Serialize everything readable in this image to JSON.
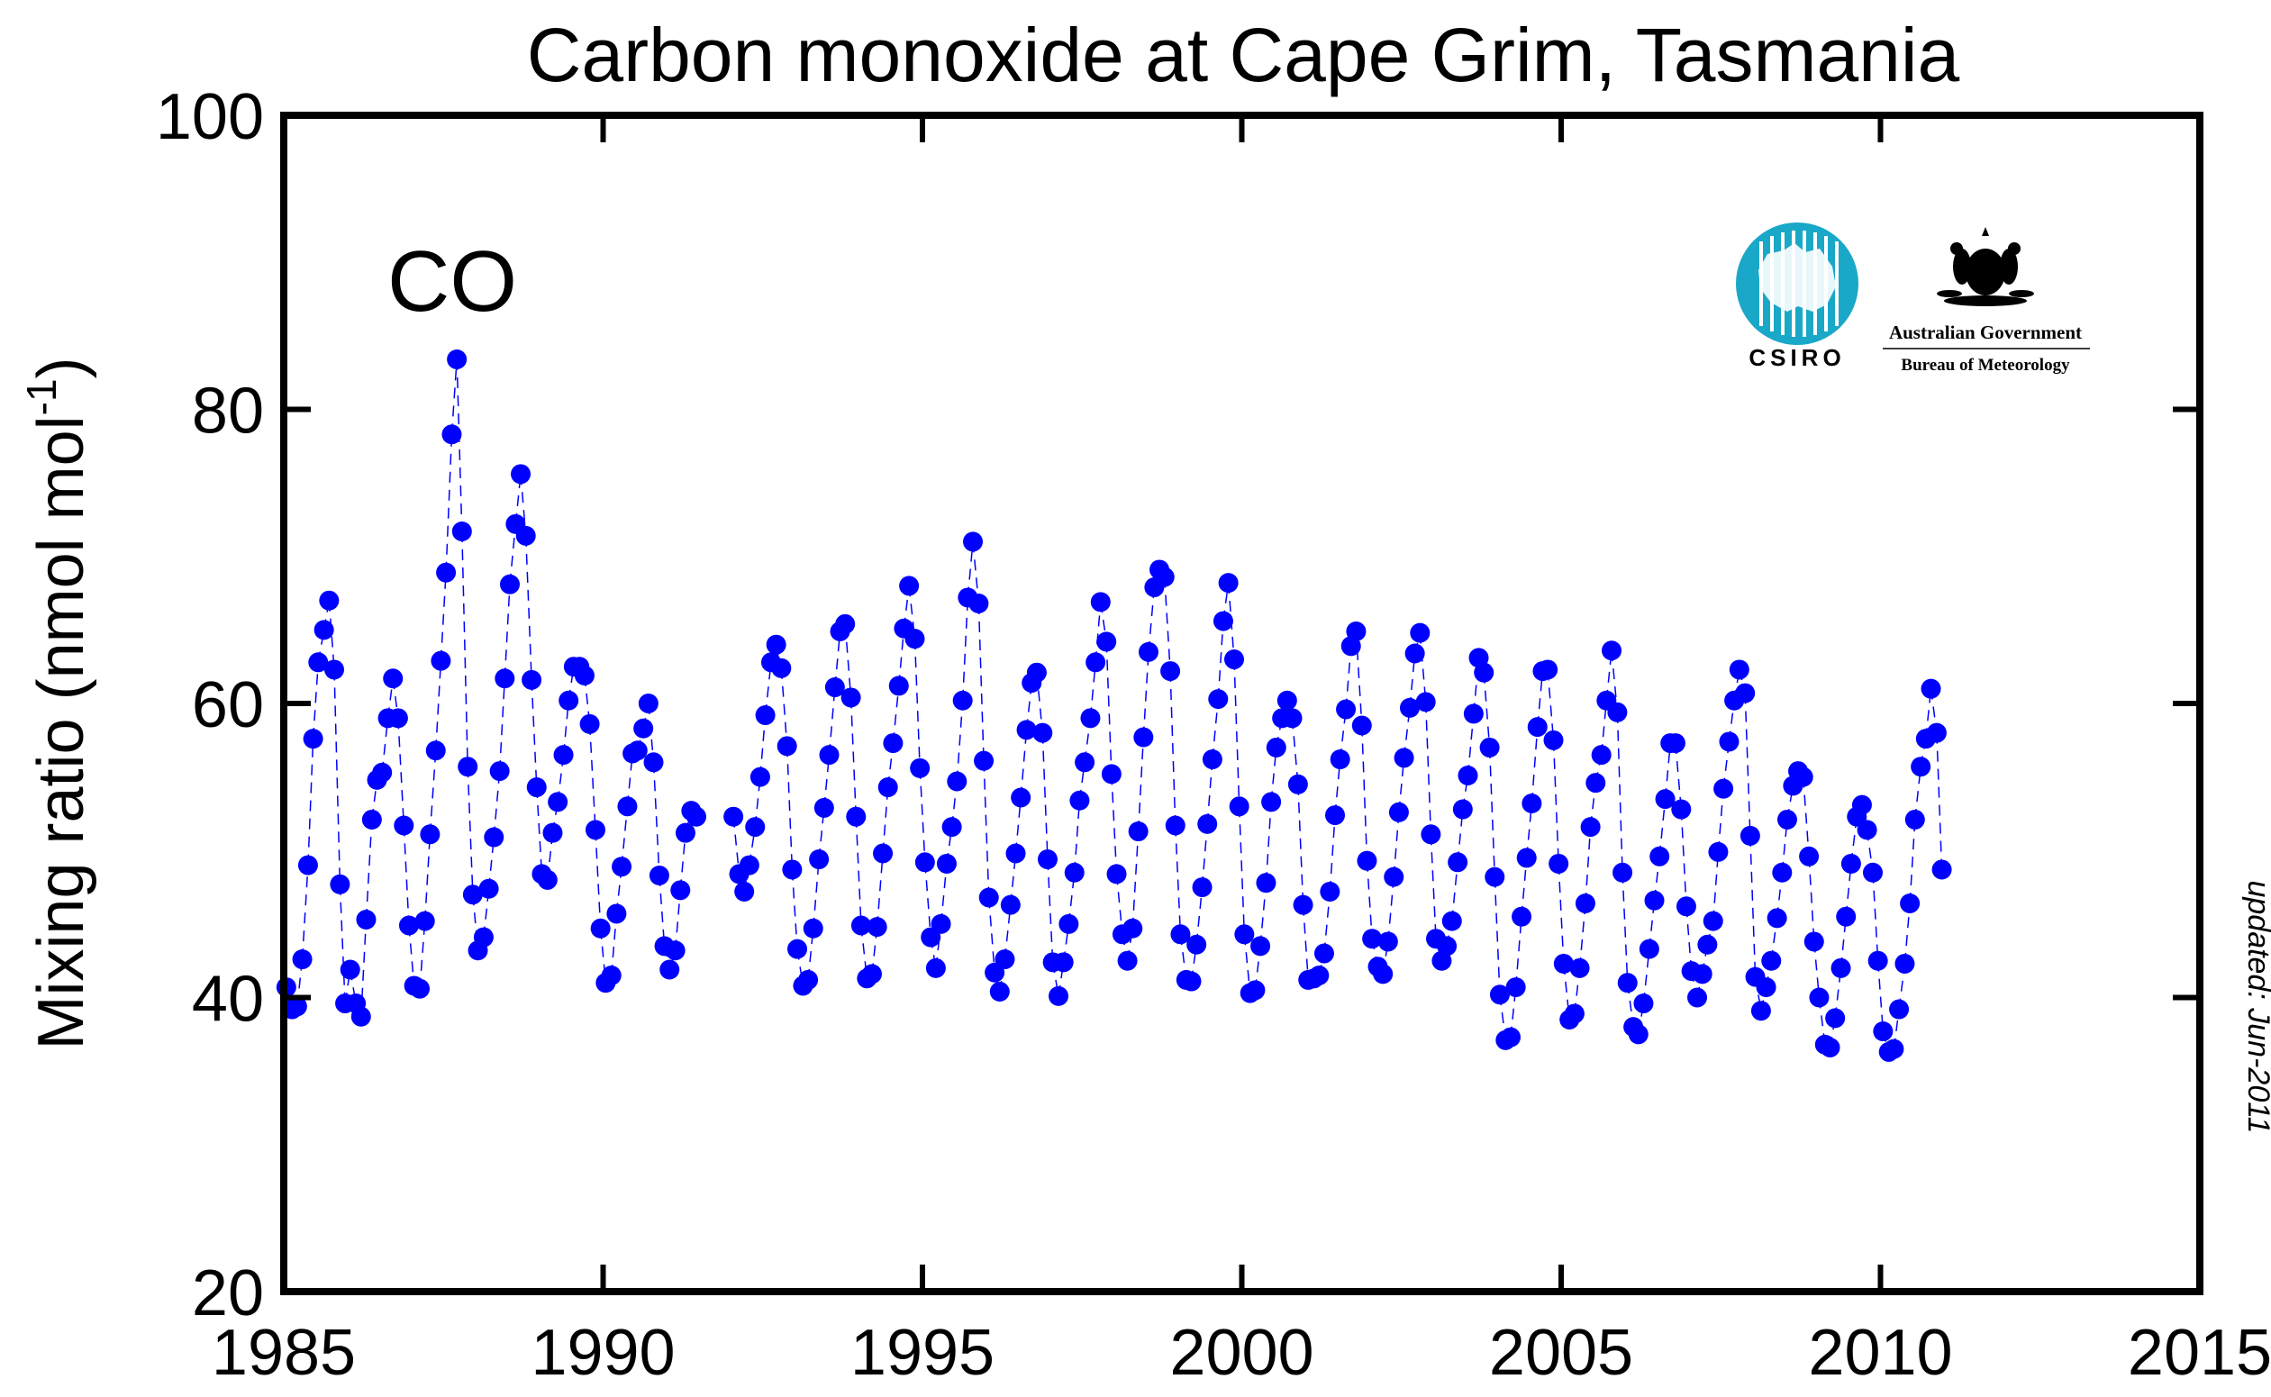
{
  "chart_data": {
    "type": "scatter",
    "title": "Carbon monoxide at Cape Grim, Tasmania",
    "xlabel": "",
    "ylabel": "Mixing ratio (nmol mol",
    "ylabel_sup": "-1",
    "ylabel_close": ")",
    "xlim": [
      1985,
      2015
    ],
    "ylim": [
      20,
      100
    ],
    "xticks": [
      1985,
      1990,
      1995,
      2000,
      2005,
      2010,
      2015
    ],
    "yticks": [
      20,
      40,
      60,
      80,
      100
    ],
    "annotation": "CO",
    "updated_note": "updated: Jun-2011",
    "series": [
      {
        "marker_color": "#0000ff",
        "line_color": "#0000ff",
        "line_style": "dashed",
        "x": [
          1985.04,
          1985.13,
          1985.21,
          1985.29,
          1985.38,
          1985.46,
          1985.54,
          1985.63,
          1985.71,
          1985.79,
          1985.88,
          1985.96,
          1986.04,
          1986.13,
          1986.21,
          1986.29,
          1986.38,
          1986.46,
          1986.54,
          1986.63,
          1986.71,
          1986.79,
          1986.88,
          1986.96,
          1987.04,
          1987.13,
          1987.21,
          1987.29,
          1987.38,
          1987.46,
          1987.54,
          1987.63,
          1987.71,
          1987.79,
          1987.88,
          1987.96,
          1988.04,
          1988.13,
          1988.21,
          1988.29,
          1988.38,
          1988.46,
          1988.54,
          1988.63,
          1988.71,
          1988.79,
          1988.88,
          1988.96,
          1989.04,
          1989.13,
          1989.21,
          1989.29,
          1989.38,
          1989.46,
          1989.54,
          1989.63,
          1989.71,
          1989.79,
          1989.88,
          1989.96,
          1990.04,
          1990.13,
          1990.21,
          1990.29,
          1990.38,
          1990.46,
          1990.54,
          1990.63,
          1990.71,
          1990.79,
          1990.88,
          1990.96,
          1991.04,
          1991.13,
          1991.21,
          1991.29,
          1991.38,
          1991.46,
          1992.04,
          1992.13,
          1992.21,
          1992.29,
          1992.38,
          1992.46,
          1992.54,
          1992.63,
          1992.71,
          1992.79,
          1992.88,
          1992.96,
          1993.04,
          1993.13,
          1993.21,
          1993.29,
          1993.38,
          1993.46,
          1993.54,
          1993.63,
          1993.71,
          1993.79,
          1993.88,
          1993.96,
          1994.04,
          1994.13,
          1994.21,
          1994.29,
          1994.38,
          1994.46,
          1994.54,
          1994.63,
          1994.71,
          1994.79,
          1994.88,
          1994.96,
          1995.04,
          1995.13,
          1995.21,
          1995.29,
          1995.38,
          1995.46,
          1995.54,
          1995.63,
          1995.71,
          1995.79,
          1995.88,
          1995.96,
          1996.04,
          1996.13,
          1996.21,
          1996.29,
          1996.38,
          1996.46,
          1996.54,
          1996.63,
          1996.71,
          1996.79,
          1996.88,
          1996.96,
          1997.04,
          1997.13,
          1997.21,
          1997.29,
          1997.38,
          1997.46,
          1997.54,
          1997.63,
          1997.71,
          1997.79,
          1997.88,
          1997.96,
          1998.04,
          1998.13,
          1998.21,
          1998.29,
          1998.38,
          1998.46,
          1998.54,
          1998.63,
          1998.71,
          1998.79,
          1998.88,
          1998.96,
          1999.04,
          1999.13,
          1999.21,
          1999.29,
          1999.38,
          1999.46,
          1999.54,
          1999.63,
          1999.71,
          1999.79,
          1999.88,
          1999.96,
          2000.04,
          2000.13,
          2000.21,
          2000.29,
          2000.38,
          2000.46,
          2000.54,
          2000.63,
          2000.71,
          2000.79,
          2000.88,
          2000.96,
          2001.04,
          2001.13,
          2001.21,
          2001.29,
          2001.38,
          2001.46,
          2001.54,
          2001.63,
          2001.71,
          2001.79,
          2001.88,
          2001.96,
          2002.04,
          2002.13,
          2002.21,
          2002.29,
          2002.38,
          2002.46,
          2002.54,
          2002.63,
          2002.71,
          2002.79,
          2002.88,
          2002.96,
          2003.04,
          2003.13,
          2003.21,
          2003.29,
          2003.38,
          2003.46,
          2003.54,
          2003.63,
          2003.71,
          2003.79,
          2003.88,
          2003.96,
          2004.04,
          2004.13,
          2004.21,
          2004.29,
          2004.38,
          2004.46,
          2004.54,
          2004.63,
          2004.71,
          2004.79,
          2004.88,
          2004.96,
          2005.04,
          2005.13,
          2005.21,
          2005.29,
          2005.38,
          2005.46,
          2005.54,
          2005.63,
          2005.71,
          2005.79,
          2005.88,
          2005.96,
          2006.04,
          2006.13,
          2006.21,
          2006.29,
          2006.38,
          2006.46,
          2006.54,
          2006.63,
          2006.71,
          2006.79,
          2006.88,
          2006.96,
          2007.04,
          2007.13,
          2007.21,
          2007.29,
          2007.38,
          2007.46,
          2007.54,
          2007.63,
          2007.71,
          2007.79,
          2007.88,
          2007.96,
          2008.04,
          2008.13,
          2008.21,
          2008.29,
          2008.38,
          2008.46,
          2008.54,
          2008.63,
          2008.71,
          2008.79,
          2008.88,
          2008.96,
          2009.04,
          2009.13,
          2009.21,
          2009.29,
          2009.38,
          2009.46,
          2009.54,
          2009.63,
          2009.71,
          2009.79,
          2009.88,
          2009.96,
          2010.04,
          2010.13,
          2010.21,
          2010.29,
          2010.38,
          2010.46,
          2010.54,
          2010.63,
          2010.71,
          2010.79,
          2010.88,
          2010.96
        ],
        "y": [
          40.7,
          39.2,
          39.4,
          42.6,
          49.0,
          57.6,
          62.8,
          65.0,
          67.0,
          62.3,
          47.7,
          39.6,
          41.9,
          39.6,
          38.7,
          45.3,
          52.1,
          54.8,
          55.3,
          59.0,
          61.7,
          59.0,
          51.7,
          44.9,
          40.8,
          40.6,
          45.2,
          51.1,
          56.8,
          62.9,
          68.9,
          78.3,
          83.4,
          71.7,
          55.7,
          47.0,
          43.2,
          44.1,
          47.4,
          50.9,
          55.4,
          61.7,
          68.1,
          72.2,
          75.6,
          71.4,
          61.6,
          54.3,
          48.4,
          48.0,
          51.2,
          53.3,
          56.5,
          60.2,
          62.5,
          62.5,
          61.9,
          58.6,
          51.4,
          44.7,
          41.0,
          41.5,
          45.7,
          48.9,
          53.0,
          56.6,
          56.8,
          58.3,
          60.0,
          56.0,
          48.3,
          43.5,
          41.9,
          43.2,
          47.3,
          51.2,
          52.7,
          52.3,
          52.3,
          48.4,
          47.2,
          49.0,
          51.6,
          55.0,
          59.2,
          62.8,
          64.0,
          62.4,
          57.1,
          48.7,
          43.3,
          40.8,
          41.2,
          44.7,
          49.4,
          52.9,
          56.5,
          61.1,
          64.9,
          65.4,
          60.4,
          52.3,
          44.9,
          41.3,
          41.6,
          44.8,
          49.8,
          54.3,
          57.3,
          61.2,
          65.1,
          68.0,
          64.4,
          55.6,
          49.2,
          44.1,
          42.0,
          45.0,
          49.1,
          51.6,
          54.7,
          60.2,
          67.2,
          71.0,
          66.8,
          56.1,
          46.8,
          41.7,
          40.4,
          42.6,
          46.3,
          49.8,
          53.6,
          58.2,
          61.4,
          62.1,
          58.0,
          49.4,
          42.4,
          40.1,
          42.4,
          45.0,
          48.5,
          53.4,
          56.0,
          59.0,
          62.8,
          66.9,
          64.2,
          55.2,
          48.4,
          44.3,
          42.5,
          44.7,
          51.3,
          57.7,
          63.5,
          67.9,
          69.1,
          68.6,
          62.2,
          51.7,
          44.3,
          41.2,
          41.1,
          43.6,
          47.5,
          51.8,
          56.2,
          60.3,
          65.6,
          68.2,
          63.0,
          53.0,
          44.3,
          40.3,
          40.5,
          43.5,
          47.8,
          53.3,
          57.0,
          59.0,
          60.2,
          59.0,
          54.5,
          46.3,
          41.2,
          41.3,
          41.5,
          43.0,
          47.2,
          52.4,
          56.2,
          59.6,
          63.9,
          64.9,
          58.5,
          49.3,
          44.0,
          42.1,
          41.6,
          43.8,
          48.2,
          52.6,
          56.3,
          59.7,
          63.4,
          64.8,
          60.1,
          51.1,
          44.0,
          42.5,
          43.5,
          45.2,
          49.2,
          52.8,
          55.1,
          59.3,
          63.1,
          62.1,
          57.0,
          48.2,
          40.2,
          37.1,
          37.3,
          40.7,
          45.5,
          49.5,
          53.2,
          58.4,
          62.2,
          62.3,
          57.5,
          49.1,
          42.3,
          38.5,
          38.9,
          42.0,
          46.4,
          51.6,
          54.6,
          56.5,
          60.2,
          63.6,
          59.4,
          48.5,
          41.0,
          38.0,
          37.5,
          39.6,
          43.3,
          46.6,
          49.6,
          53.5,
          57.3,
          57.3,
          52.8,
          46.2,
          41.8,
          40.0,
          41.6,
          43.6,
          45.2,
          49.9,
          54.2,
          57.4,
          60.2,
          62.3,
          60.7,
          51.0,
          41.4,
          39.1,
          40.7,
          42.5,
          45.4,
          48.5,
          52.1,
          54.4,
          55.4,
          55.0,
          49.6,
          43.8,
          40.0,
          36.8,
          36.6,
          38.6,
          42.0,
          45.5,
          49.1,
          52.3,
          53.1,
          51.4,
          48.5,
          42.5,
          37.7,
          36.3,
          36.5,
          39.2,
          42.3,
          46.4,
          52.1,
          55.7,
          57.6,
          61.0,
          58.0,
          48.7
        ]
      }
    ]
  },
  "logos": {
    "csiro_text": "CSIRO",
    "gov_line1": "Australian Government",
    "gov_line2": "Bureau of Meteorology"
  }
}
